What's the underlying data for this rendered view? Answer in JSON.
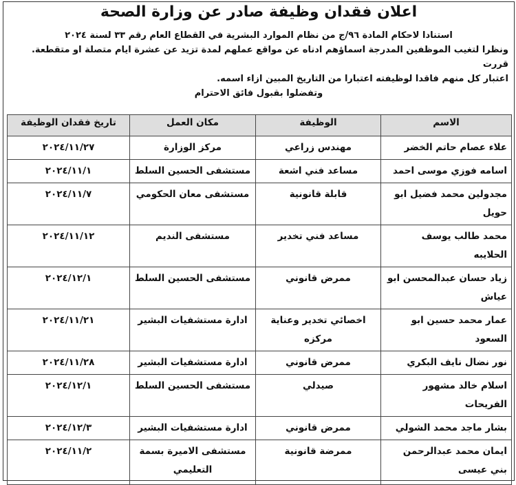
{
  "header": {
    "title": "اعلان فقدان وظيفة صادر عن وزارة الصحة"
  },
  "body": {
    "lines": [
      "استنادا لاحكام المادة ٩٦/ج من نظام الموارد البشرية في القطاع العام رقم ٣٣ لسنة ٢٠٢٤",
      "ونظرا لتغيب الموظفين المدرجة اسماؤهم ادناه عن مواقع عملهم لمدة تزيد عن عشرة ايام متصلة او متقطعة. قررت",
      "اعتبار كل منهم فاقدا لوظيفته اعتبارا من التاريخ المبين ازاء اسمه.",
      "وتفضلوا بقبول فائق الاحترام"
    ]
  },
  "table": {
    "columns": [
      "الاسم",
      "الوظيفة",
      "مكان العمل",
      "تاريخ فقدان الوظيفة"
    ],
    "rows": [
      [
        "علاء عصام حاتم الخضر",
        "مهندس زراعي",
        "مركز الوزارة",
        "٢٠٢٤/١١/٢٧"
      ],
      [
        "اسامه فوزي موسى احمد",
        "مساعد فني اشعة",
        "مستشفى الحسين السلط",
        "٢٠٢٤/١١/١"
      ],
      [
        "مجدولين محمد فضيل ابو حويل",
        "قابلة قانونية",
        "مستشفى معان الحكومي",
        "٢٠٢٤/١١/٧"
      ],
      [
        "محمد طالب يوسف الحلايبه",
        "مساعد فني تخدير",
        "مستشفى النديم",
        "٢٠٢٤/١١/١٢"
      ],
      [
        "زياد حسان عبدالمحسن ابو عياش",
        "ممرض قانوني",
        "مستشفى الحسين السلط",
        "٢٠٢٤/١٢/١"
      ],
      [
        "عمار محمد حسين ابو السعود",
        "اخصائي تخدير وعناية مركزه",
        "ادارة مستشفيات البشير",
        "٢٠٢٤/١١/٢١"
      ],
      [
        "نور نضال نايف البكري",
        "ممرض قانوني",
        "ادارة مستشفيات البشير",
        "٢٠٢٤/١١/٢٨"
      ],
      [
        "اسلام خالد مشهور الفريحات",
        "صيدلي",
        "مستشفى الحسين السلط",
        "٢٠٢٤/١٢/١"
      ],
      [
        "بشار ماجد محمد الشولي",
        "ممرض قانوني",
        "ادارة مستشفيات البشير",
        "٢٠٢٤/١٢/٣"
      ],
      [
        "ايمان محمد عبدالرحمن بني عيسى",
        "ممرضة قانونية",
        "مستشفى الاميرة بسمة التعليمي",
        "٢٠٢٤/١١/٢"
      ]
    ]
  }
}
